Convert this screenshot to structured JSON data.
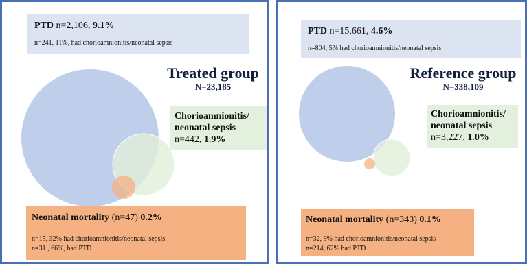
{
  "panels": [
    {
      "title": "Treated group",
      "total": "N=23,185",
      "ptd": {
        "label": "PTD",
        "count": "n=2,106,",
        "pct": "9.1%",
        "note": "n=241, 11%, had chorioamnionitis/neonatal sepsis"
      },
      "sepsis": {
        "label_line1": "Chorioamnionitis/",
        "label_line2": "neonatal sepsis",
        "count": "n=442,",
        "pct": "1.9%"
      },
      "mortality": {
        "label": "Neonatal mortality",
        "count": "(n=47)",
        "pct": "0.2%",
        "note1": "n=15, 32% had chorioamnionitis/neonatal sepsis",
        "note2": "n=31 , 66%, had PTD"
      }
    },
    {
      "title": "Reference group",
      "total": "N=338,109",
      "ptd": {
        "label": "PTD",
        "count": "n=15,661,",
        "pct": "4.6%",
        "note": "n=804, 5% had chorioamnionitis/neonatal sepsis"
      },
      "sepsis": {
        "label_line1": "Chorioamnionitis/",
        "label_line2": "neonatal sepsis",
        "count": "n=3,227,",
        "pct": "1.0%"
      },
      "mortality": {
        "label": "Neonatal mortality",
        "count": "(n=343)",
        "pct": "0.1%",
        "note1": "n=32, 9% had chorioamnionitis/neonatal sepsis",
        "note2": "n=214, 62% had PTD"
      }
    }
  ],
  "colors": {
    "ptd_circle": "#b4c6e7",
    "sepsis_circle": "#e2efd9",
    "mortality_circle": "#f4b183",
    "border": "#4a6fb5",
    "title": "#13203f"
  }
}
